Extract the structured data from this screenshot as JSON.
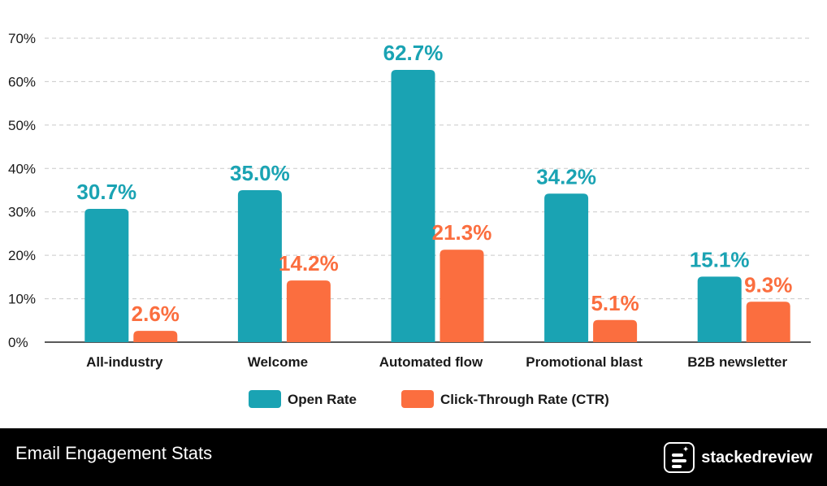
{
  "chart_data": {
    "type": "bar",
    "categories": [
      "All-industry",
      "Welcome",
      "Automated flow",
      "Promotional blast",
      "B2B newsletter"
    ],
    "series": [
      {
        "name": "Open Rate",
        "values": [
          30.7,
          35.0,
          62.7,
          34.2,
          15.1
        ],
        "labels": [
          "30.7%",
          "35.0%",
          "62.7%",
          "34.2%",
          "15.1%"
        ],
        "color": "#1aa3b3"
      },
      {
        "name": "Click-Through Rate (CTR)",
        "values": [
          2.6,
          14.2,
          21.3,
          5.1,
          9.3
        ],
        "labels": [
          "2.6%",
          "14.2%",
          "21.3%",
          "5.1%",
          "9.3%"
        ],
        "color": "#fb6e3f"
      }
    ],
    "yticks": [
      "0%",
      "10%",
      "20%",
      "30%",
      "40%",
      "50%",
      "60%",
      "70%"
    ],
    "ylim": [
      0,
      70
    ],
    "grid": true,
    "legend_position": "bottom-center",
    "title": "",
    "xlabel": "",
    "ylabel": ""
  },
  "footer": {
    "title": "Email Engagement Stats",
    "brand": "stackedreview"
  }
}
